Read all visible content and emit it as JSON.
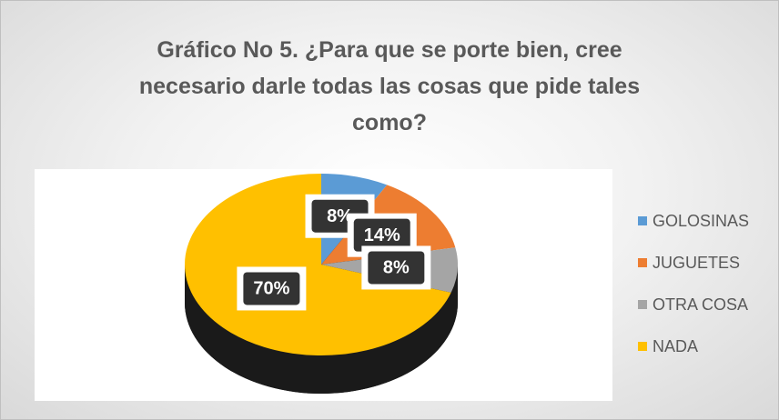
{
  "chart_data": {
    "type": "pie3d",
    "title": "Gráfico No 5. ¿Para que se porte bien, cree necesario darle todas las cosas que pide tales como?",
    "categories": [
      "GOLOSINAS",
      "JUGUETES",
      "OTRA COSA",
      "NADA"
    ],
    "values": [
      8,
      14,
      8,
      70
    ],
    "value_labels": [
      "8%",
      "14%",
      "8%",
      "70%"
    ],
    "colors": [
      "#5b9bd5",
      "#ed7d31",
      "#a5a5a5",
      "#ffc000"
    ],
    "legend": "right"
  }
}
